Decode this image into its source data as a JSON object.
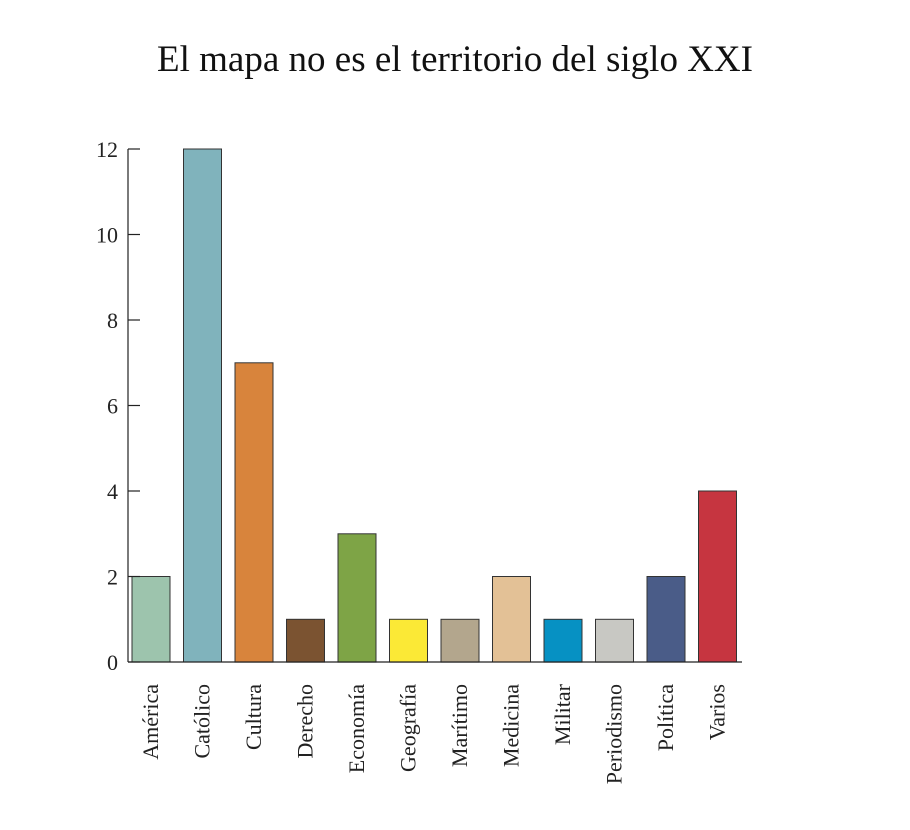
{
  "chart_data": {
    "type": "bar",
    "title": "El mapa no es el territorio del siglo XXI",
    "xlabel": "",
    "ylabel": "",
    "ylim": [
      0,
      12
    ],
    "yticks": [
      0,
      2,
      4,
      6,
      8,
      10,
      12
    ],
    "grid": false,
    "categories": [
      "América",
      "Católico",
      "Cultura",
      "Derecho",
      "Economía",
      "Geografía",
      "Marítimo",
      "Medicina",
      "Militar",
      "Periodismo",
      "Política",
      "Varios"
    ],
    "values": [
      2,
      12,
      7,
      1,
      3,
      1,
      1,
      2,
      1,
      1,
      2,
      4
    ],
    "colors": [
      "#9dc4ad",
      "#80b3bc",
      "#d8843c",
      "#7b5331",
      "#7ea446",
      "#fbe936",
      "#b3a68d",
      "#e3c196",
      "#0691c3",
      "#c8c8c3",
      "#4a5c88",
      "#c63540"
    ]
  }
}
